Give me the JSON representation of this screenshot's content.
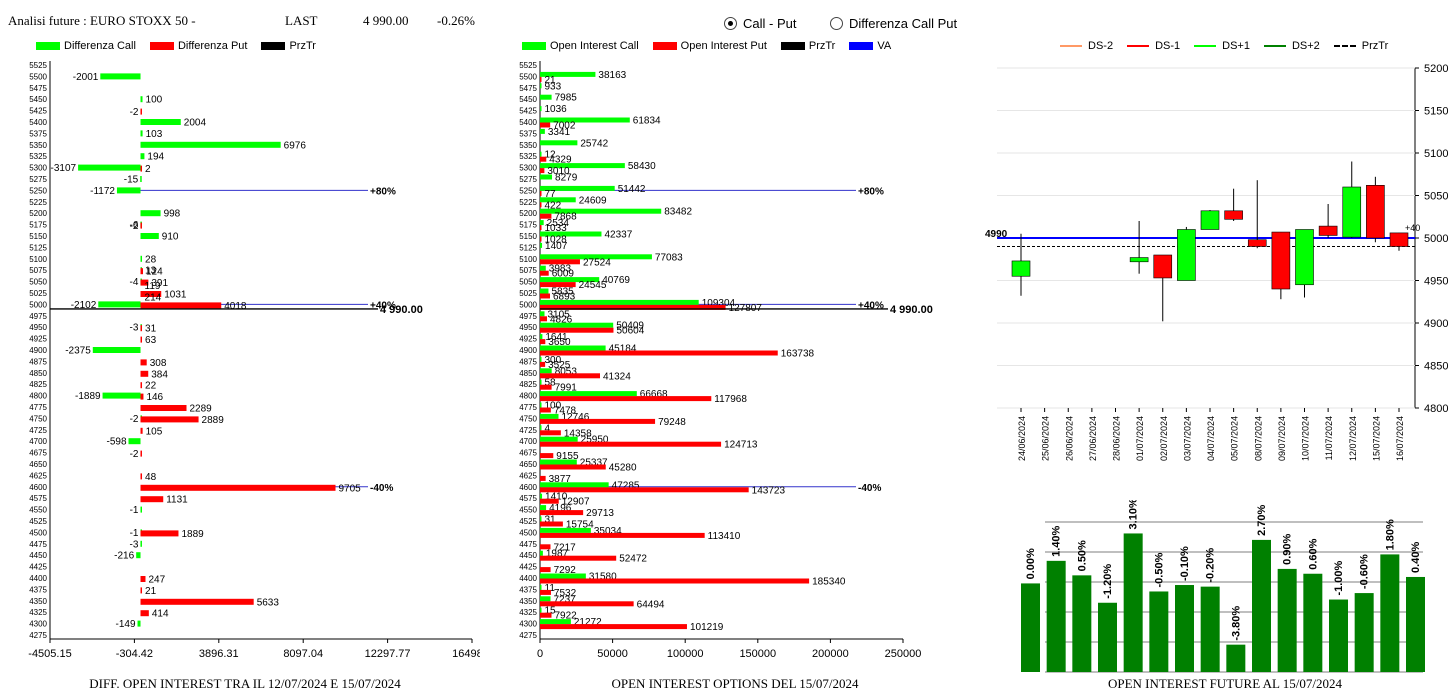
{
  "header": {
    "title": "Analisi future : EURO STOXX 50 -",
    "last_label": "LAST",
    "last_value": "4 990.00",
    "change": "-0.26%"
  },
  "radio": [
    {
      "label": "Call - Put",
      "selected": true
    },
    {
      "label": "Differenza Call Put",
      "selected": false
    }
  ],
  "footers": {
    "left": "DIFF. OPEN INTEREST TRA IL 12/07/2024 E 15/07/2024",
    "middle": "OPEN INTEREST OPTIONS DEL 15/07/2024",
    "right": "OPEN INTEREST FUTURE AL 15/07/2024"
  },
  "colors": {
    "call": "#00ff00",
    "put": "#ff0000",
    "prztr": "#000000",
    "va": "#0000ff",
    "oi_bar": "#008000",
    "candle_up": "#00ff00",
    "candle_down": "#ff0000"
  },
  "chart_data": [
    {
      "type": "bar",
      "orientation": "horizontal",
      "strikes": [
        5525,
        5500,
        5475,
        5450,
        5425,
        5400,
        5375,
        5350,
        5325,
        5300,
        5275,
        5250,
        5225,
        5200,
        5175,
        5150,
        5125,
        5100,
        5075,
        5050,
        5025,
        5000,
        4975,
        4950,
        4925,
        4900,
        4875,
        4850,
        4825,
        4800,
        4775,
        4750,
        4725,
        4700,
        4675,
        4650,
        4625,
        4600,
        4575,
        4550,
        4525,
        4500,
        4475,
        4450,
        4425,
        4400,
        4375,
        4350,
        4325,
        4300,
        4275
      ],
      "series": [
        {
          "name": "Differenza Call",
          "values": [
            null,
            -2001,
            null,
            100,
            null,
            2004,
            103,
            6976,
            194,
            -3107,
            -15,
            -1172,
            null,
            998,
            -6,
            910,
            null,
            28,
            13,
            -4,
            null,
            -2102,
            null,
            -3,
            null,
            -2375,
            null,
            null,
            null,
            -1889,
            null,
            -2,
            null,
            -598,
            null,
            null,
            null,
            null,
            null,
            -1,
            null,
            -1,
            -3,
            -216,
            null,
            null,
            null,
            null,
            null,
            -149,
            null
          ]
        },
        {
          "name": "Differenza Put",
          "values": [
            null,
            null,
            null,
            null,
            -2,
            null,
            null,
            null,
            null,
            2,
            null,
            null,
            null,
            null,
            -2,
            null,
            null,
            null,
            124,
            391,
            1031,
            4018,
            null,
            31,
            63,
            null,
            308,
            384,
            22,
            146,
            2289,
            2889,
            105,
            null,
            -2,
            null,
            48,
            9705,
            1131,
            null,
            null,
            1889,
            null,
            null,
            null,
            247,
            21,
            5633,
            414,
            null,
            null
          ]
        }
      ],
      "extra_labels": [
        {
          "strike": 5050,
          "text": "119"
        },
        {
          "strike": 5025,
          "text": "214"
        }
      ],
      "prztr": 4990,
      "markers": [
        {
          "strike": 5250,
          "label": "+80%"
        },
        {
          "strike": 5000,
          "label": "+40%"
        },
        {
          "strike": 4600,
          "label": "-40%"
        }
      ],
      "prztr_label": "4 990.00",
      "x_ticks": [
        "-4505.15",
        "-304.42",
        "3896.31",
        "8097.04",
        "12297.77",
        "16498.5"
      ],
      "x_range": [
        -4505.15,
        16498.5
      ],
      "legend": [
        "Differenza Call",
        "Differenza Put",
        "PrzTr"
      ]
    },
    {
      "type": "bar",
      "orientation": "horizontal",
      "strikes": [
        5525,
        5500,
        5475,
        5450,
        5425,
        5400,
        5375,
        5350,
        5325,
        5300,
        5275,
        5250,
        5225,
        5200,
        5175,
        5150,
        5125,
        5100,
        5075,
        5050,
        5025,
        5000,
        4975,
        4950,
        4925,
        4900,
        4875,
        4850,
        4825,
        4800,
        4775,
        4750,
        4725,
        4700,
        4675,
        4650,
        4625,
        4600,
        4575,
        4550,
        4525,
        4500,
        4475,
        4450,
        4425,
        4400,
        4375,
        4350,
        4325,
        4300,
        4275
      ],
      "series": [
        {
          "name": "Open Interest Call",
          "values": [
            null,
            38163,
            933,
            7985,
            1036,
            61834,
            3341,
            25742,
            12,
            58430,
            8279,
            51442,
            24609,
            83482,
            2534,
            42337,
            1407,
            77083,
            3983,
            40769,
            5835,
            109304,
            3105,
            50409,
            1641,
            45184,
            300,
            8053,
            58,
            66668,
            100,
            12746,
            4,
            25950,
            null,
            25337,
            null,
            47285,
            1410,
            4196,
            31,
            35034,
            null,
            1987,
            null,
            31580,
            11,
            7237,
            15,
            21272,
            null
          ]
        },
        {
          "name": "Open Interest Put",
          "values": [
            null,
            21,
            null,
            null,
            null,
            7002,
            null,
            null,
            4329,
            3010,
            null,
            77,
            422,
            7868,
            1033,
            1028,
            null,
            27524,
            6009,
            24545,
            6893,
            127807,
            4826,
            50604,
            3650,
            163738,
            3525,
            41324,
            7991,
            117968,
            7478,
            79248,
            14358,
            124713,
            9155,
            45280,
            3877,
            143723,
            12907,
            29713,
            15754,
            113410,
            7217,
            52472,
            7292,
            185340,
            7532,
            64494,
            7922,
            101219,
            null
          ]
        }
      ],
      "prztr": 4990,
      "markers": [
        {
          "strike": 5250,
          "label": "+80%"
        },
        {
          "strike": 5000,
          "label": "+40%"
        },
        {
          "strike": 4600,
          "label": "-40%"
        }
      ],
      "prztr_label": "4 990.00",
      "x_ticks": [
        "0",
        "50000",
        "100000",
        "150000",
        "200000",
        "250000"
      ],
      "x_range": [
        0,
        250000
      ],
      "legend": [
        "Open Interest Call",
        "Open Interest Put",
        "PrzTr",
        "VA"
      ]
    },
    {
      "type": "candlestick",
      "legend": [
        "DS-2",
        "DS-1",
        "DS+1",
        "DS+2",
        "PrzTr"
      ],
      "dates": [
        "24/06/2024",
        "25/06/2024",
        "26/06/2024",
        "27/06/2024",
        "28/06/2024",
        "01/07/2024",
        "02/07/2024",
        "03/07/2024",
        "04/07/2024",
        "05/07/2024",
        "08/07/2024",
        "09/07/2024",
        "10/07/2024",
        "11/07/2024",
        "12/07/2024",
        "15/07/2024",
        "16/07/2024"
      ],
      "candles": [
        {
          "date": "24/06/2024",
          "open": 4955,
          "close": 4973,
          "high": 5005,
          "low": 4932
        },
        {
          "date": "01/07/2024",
          "open": 4972,
          "close": 4977,
          "high": 5020,
          "low": 4958
        },
        {
          "date": "02/07/2024",
          "open": 4980,
          "close": 4953,
          "high": 4980,
          "low": 4902
        },
        {
          "date": "03/07/2024",
          "open": 4950,
          "close": 5010,
          "high": 5013,
          "low": 4950
        },
        {
          "date": "04/07/2024",
          "open": 5010,
          "close": 5032,
          "high": 5033,
          "low": 5010
        },
        {
          "date": "05/07/2024",
          "open": 5032,
          "close": 5022,
          "high": 5058,
          "low": 5020
        },
        {
          "date": "08/07/2024",
          "open": 4998,
          "close": 4990,
          "high": 5068,
          "low": 4988
        },
        {
          "date": "09/07/2024",
          "open": 5007,
          "close": 4940,
          "high": 5007,
          "low": 4928
        },
        {
          "date": "10/07/2024",
          "open": 4945,
          "close": 5010,
          "high": 5010,
          "low": 4930
        },
        {
          "date": "11/07/2024",
          "open": 5014,
          "close": 5003,
          "high": 5040,
          "low": 5000
        },
        {
          "date": "12/07/2024",
          "open": 5001,
          "close": 5060,
          "high": 5090,
          "low": 5000
        },
        {
          "date": "15/07/2024",
          "open": 5062,
          "close": 5000,
          "high": 5072,
          "low": 4995
        },
        {
          "date": "16/07/2024",
          "open": 5006,
          "close": 4990,
          "high": 5006,
          "low": 4985
        }
      ],
      "y_ticks": [
        5200,
        5150,
        5100,
        5050,
        5000,
        4950,
        4900,
        4850,
        4800
      ],
      "y_range": [
        4800,
        5200
      ],
      "prztr": 4990,
      "va_level": 5000,
      "prztr_label": "4990",
      "va_label": "+40"
    },
    {
      "type": "bar",
      "series": [
        {
          "values": [
            0.0,
            1.4,
            0.5,
            -1.2,
            3.1,
            -0.5,
            -0.1,
            -0.2,
            -3.8,
            2.7,
            0.9,
            0.6,
            -1.0,
            -0.6,
            1.8,
            0.4
          ]
        }
      ],
      "labels": [
        "0.00%",
        "1.40%",
        "0.50%",
        "-1.20%",
        "3.10%",
        "-0.50%",
        "-0.10%",
        "-0.20%",
        "-3.80%",
        "2.70%",
        "0.90%",
        "0.60%",
        "-1.00%",
        "-0.60%",
        "1.80%",
        "0.40%"
      ]
    }
  ]
}
